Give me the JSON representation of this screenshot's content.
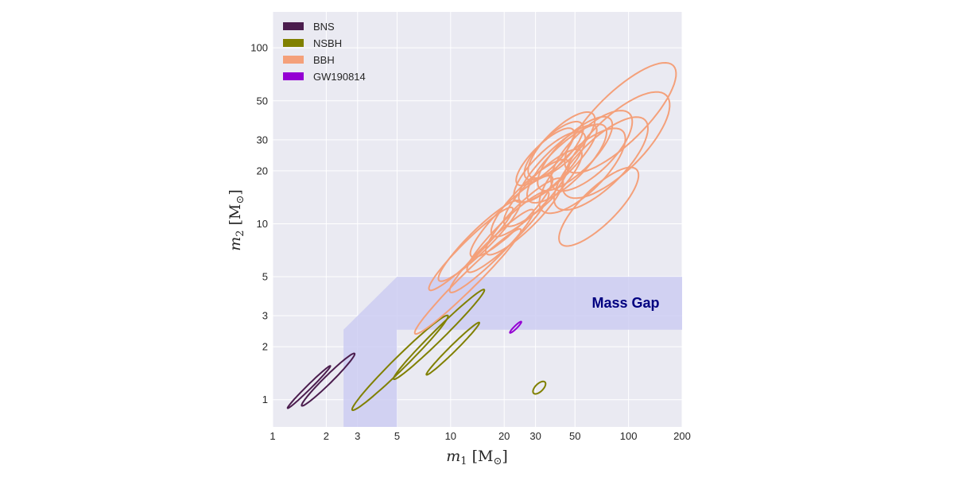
{
  "chart_data": {
    "type": "contour",
    "xscale": "log",
    "yscale": "log",
    "xlim": [
      1,
      200
    ],
    "ylim": [
      0.7,
      160
    ],
    "grid": true,
    "xlabel": {
      "var": "m",
      "sub": "1",
      "unit": "[M",
      "unitsub": "⊙",
      "close": "]"
    },
    "ylabel": {
      "var": "m",
      "sub": "2",
      "unit": "[M",
      "unitsub": "⊙",
      "close": "]"
    },
    "xticks": [
      1,
      2,
      3,
      5,
      10,
      20,
      30,
      50,
      100,
      200
    ],
    "xtick_labels": [
      "1",
      "2",
      "3",
      "5",
      "10",
      "20",
      "30",
      "50",
      "100",
      "200"
    ],
    "yticks": [
      1,
      2,
      3,
      5,
      10,
      20,
      30,
      50,
      100
    ],
    "ytick_labels": [
      "1",
      "2",
      "3",
      "5",
      "10",
      "20",
      "30",
      "50",
      "100"
    ],
    "legend_position": "top-left",
    "legend": [
      {
        "label": "BNS",
        "color": "#4b1d4e"
      },
      {
        "label": "NSBH",
        "color": "#808000"
      },
      {
        "label": "BBH",
        "color": "#f4a07a"
      },
      {
        "label": "GW190814",
        "color": "#9400d3"
      }
    ],
    "mass_gap": {
      "label": "Mass Gap",
      "lower": 2.5,
      "upper": 5,
      "color": "#ccccf2",
      "label_color": "#000080"
    },
    "series": [
      {
        "name": "BNS",
        "color": "#4b1d4e",
        "contours": [
          {
            "cx": 1.6,
            "cy": 1.18,
            "major": 0.17,
            "minor": 0.012,
            "angle": -1.0
          },
          {
            "cx": 2.05,
            "cy": 1.3,
            "major": 0.21,
            "minor": 0.022,
            "angle": -0.98
          }
        ]
      },
      {
        "name": "NSBH",
        "color": "#808000",
        "contours": [
          {
            "cx": 5.2,
            "cy": 1.62,
            "major": 0.38,
            "minor": 0.035,
            "angle": -0.97
          },
          {
            "cx": 8.6,
            "cy": 2.35,
            "major": 0.36,
            "minor": 0.03,
            "angle": -0.95
          },
          {
            "cx": 10.3,
            "cy": 1.95,
            "major": 0.21,
            "minor": 0.018,
            "angle": -0.75
          },
          {
            "cx": 31.5,
            "cy": 1.17,
            "major": 0.045,
            "minor": 0.022,
            "angle": -0.3
          }
        ]
      },
      {
        "name": "GW190814",
        "color": "#9400d3",
        "contours": [
          {
            "cx": 23.2,
            "cy": 2.58,
            "major": 0.045,
            "minor": 0.008,
            "angle": -0.7
          }
        ]
      },
      {
        "name": "BBH",
        "color": "#f4a07a",
        "contours": [
          {
            "cx": 12.5,
            "cy": 4.7,
            "major": 0.42,
            "minor": 0.045,
            "angle": -0.82
          },
          {
            "cx": 13.0,
            "cy": 7.2,
            "major": 0.33,
            "minor": 0.05,
            "angle": -0.8
          },
          {
            "cx": 14.5,
            "cy": 8.0,
            "major": 0.32,
            "minor": 0.06,
            "angle": -0.8
          },
          {
            "cx": 17.0,
            "cy": 7.0,
            "major": 0.33,
            "minor": 0.05,
            "angle": -0.82
          },
          {
            "cx": 21.0,
            "cy": 9.0,
            "major": 0.32,
            "minor": 0.06,
            "angle": -0.8
          },
          {
            "cx": 22.0,
            "cy": 11.0,
            "major": 0.32,
            "minor": 0.07,
            "angle": -0.8
          },
          {
            "cx": 26.0,
            "cy": 11.0,
            "major": 0.3,
            "minor": 0.07,
            "angle": -0.82
          },
          {
            "cx": 28.0,
            "cy": 14.0,
            "major": 0.3,
            "minor": 0.08,
            "angle": -0.8
          },
          {
            "cx": 33.0,
            "cy": 16.0,
            "major": 0.3,
            "minor": 0.08,
            "angle": -0.8
          },
          {
            "cx": 34.0,
            "cy": 24.0,
            "major": 0.22,
            "minor": 0.07,
            "angle": -0.8
          },
          {
            "cx": 36.0,
            "cy": 21.0,
            "major": 0.27,
            "minor": 0.09,
            "angle": -0.8
          },
          {
            "cx": 38.0,
            "cy": 26.0,
            "major": 0.22,
            "minor": 0.08,
            "angle": -0.8
          },
          {
            "cx": 40.0,
            "cy": 22.0,
            "major": 0.3,
            "minor": 0.08,
            "angle": -0.8
          },
          {
            "cx": 42.0,
            "cy": 28.0,
            "major": 0.25,
            "minor": 0.09,
            "angle": -0.8
          },
          {
            "cx": 45.0,
            "cy": 22.0,
            "major": 0.3,
            "minor": 0.1,
            "angle": -0.75
          },
          {
            "cx": 50.0,
            "cy": 25.0,
            "major": 0.28,
            "minor": 0.1,
            "angle": -0.75
          },
          {
            "cx": 55.0,
            "cy": 20.0,
            "major": 0.32,
            "minor": 0.12,
            "angle": -0.7
          },
          {
            "cx": 62.0,
            "cy": 26.0,
            "major": 0.3,
            "minor": 0.12,
            "angle": -0.7
          },
          {
            "cx": 70.0,
            "cy": 22.0,
            "major": 0.35,
            "minor": 0.13,
            "angle": -0.65
          },
          {
            "cx": 85.0,
            "cy": 28.0,
            "major": 0.4,
            "minor": 0.15,
            "angle": -0.7
          },
          {
            "cx": 90.0,
            "cy": 40.0,
            "major": 0.42,
            "minor": 0.14,
            "angle": -0.75
          },
          {
            "cx": 68.0,
            "cy": 12.5,
            "major": 0.3,
            "minor": 0.1,
            "angle": -0.7
          }
        ]
      }
    ]
  }
}
